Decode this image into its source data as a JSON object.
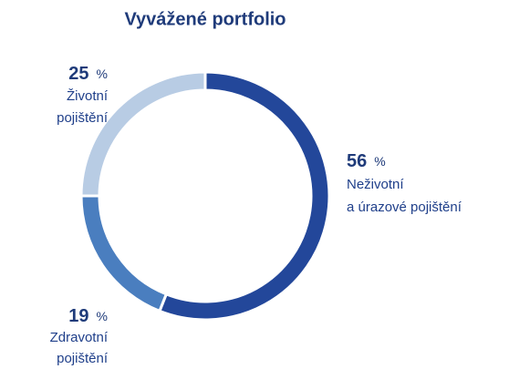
{
  "chart_data": {
    "type": "donut",
    "title": "Vyvážené portfolio",
    "categories": [
      [
        "Neživotní",
        "a úrazové pojištění"
      ],
      [
        "Zdravotní",
        "pojištění"
      ],
      [
        "Životní",
        "pojištění"
      ]
    ],
    "values": [
      56,
      19,
      25
    ],
    "unit": "%",
    "colors": [
      "#23479a",
      "#4a7ebf",
      "#b8cce4"
    ]
  }
}
